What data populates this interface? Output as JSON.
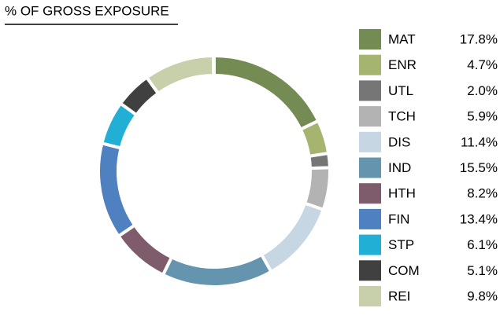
{
  "chart_data": {
    "type": "donut",
    "title": "% OF GROSS EXPOSURE",
    "categories": [
      "MAT",
      "ENR",
      "UTL",
      "TCH",
      "DIS",
      "IND",
      "HTH",
      "FIN",
      "STP",
      "COM",
      "REI"
    ],
    "values": [
      17.8,
      4.7,
      2.0,
      5.9,
      11.4,
      15.5,
      8.2,
      13.4,
      6.1,
      5.1,
      9.8
    ],
    "value_labels": [
      "17.8%",
      "4.7%",
      "2.0%",
      "5.9%",
      "11.4%",
      "15.5%",
      "8.2%",
      "13.4%",
      "6.1%",
      "5.1%",
      "9.8%"
    ],
    "colors": [
      "#748b53",
      "#a5b46e",
      "#767676",
      "#b3b3b3",
      "#c6d6e3",
      "#6595ae",
      "#7e5c6c",
      "#4f80c0",
      "#22afd6",
      "#404040",
      "#c7d0aa"
    ],
    "legend": "right"
  }
}
